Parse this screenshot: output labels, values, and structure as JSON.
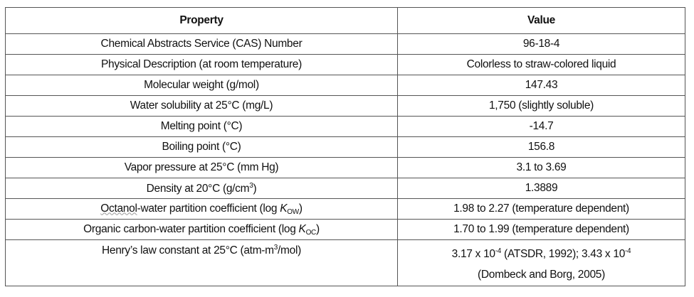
{
  "headers": {
    "property": "Property",
    "value": "Value"
  },
  "rows": [
    {
      "property": "Chemical Abstracts Service (CAS) Number",
      "value": "96-18-4"
    },
    {
      "property": "Physical Description (at room temperature)",
      "value": "Colorless to straw-colored liquid"
    },
    {
      "property": "Molecular weight (g/mol)",
      "value": "147.43"
    },
    {
      "property": "Water solubility at 25°C (mg/L)",
      "value": "1,750 (slightly soluble)"
    },
    {
      "property": "Melting point (°C)",
      "value": "-14.7"
    },
    {
      "property": "Boiling point (°C)",
      "value": "156.8"
    },
    {
      "property": "Vapor pressure at 25°C (mm Hg)",
      "value": "3.1 to 3.69"
    },
    {
      "property_pre": "Density at 20°C (g/cm",
      "property_sup": "3",
      "property_post": ")",
      "value": "1.3889"
    },
    {
      "property_squig": "Octanol",
      "property_pre": "-water partition coefficient (log ",
      "property_k": "K",
      "property_sub": "OW",
      "property_post": ")",
      "value": "1.98 to 2.27 (temperature dependent)"
    },
    {
      "property_pre": "Organic carbon-water partition coefficient (log ",
      "property_k": "K",
      "property_sub": "OC",
      "property_post": ")",
      "value": "1.70 to 1.99 (temperature dependent)"
    },
    {
      "property_pre": "Henry’s law constant at 25°C (atm-m",
      "property_sup": "3",
      "property_post": "/mol)",
      "value_a": "3.17 x 10",
      "value_a_sup": "-4",
      "value_b": " (ATSDR, 1992); 3.43 x 10",
      "value_b_sup": "-4",
      "value_c": "(Dombeck and Borg, 2005)"
    }
  ]
}
